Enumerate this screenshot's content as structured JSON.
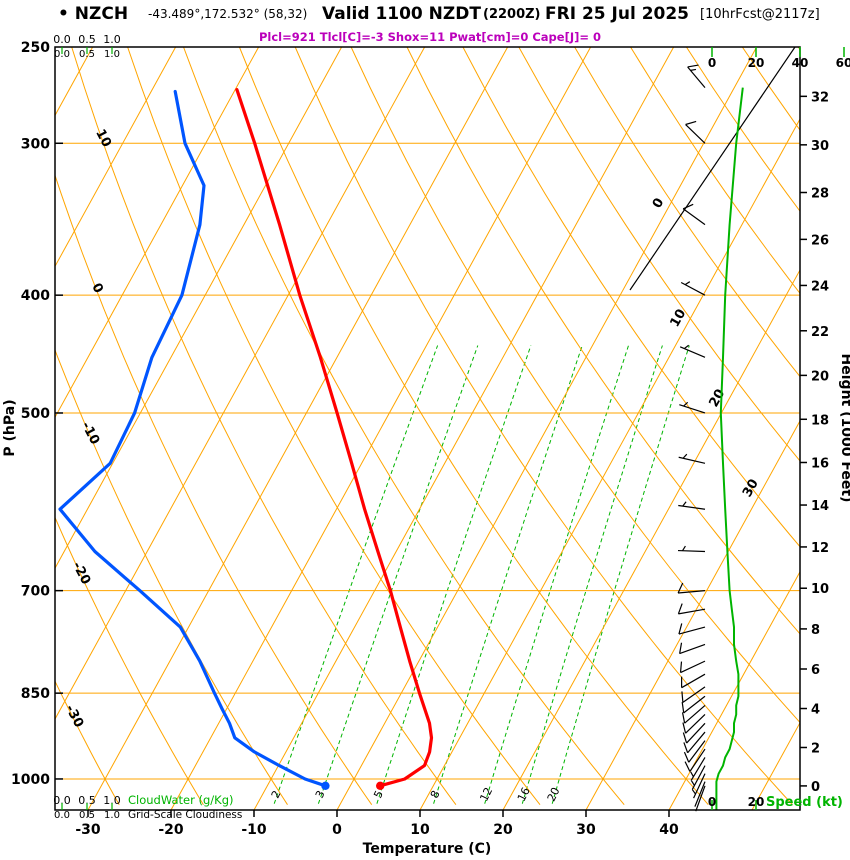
{
  "header": {
    "station_display": "• NZCH",
    "coords": "-43.489°,172.532° (58,32)",
    "valid_main": "Valid 1100 NZDT",
    "valid_z": "(2200Z)",
    "valid_date": "FRI 25 Jul 2025",
    "fcst_tag": "[10hrFcst@2117z]",
    "indices_line": "Plcl=921 Tlcl[C]=-3 Shox=11 Pwat[cm]=0 Cape[J]= 0"
  },
  "axes": {
    "pressure": {
      "title": "P (hPa)",
      "ticks": [
        250,
        300,
        400,
        500,
        700,
        850,
        1000
      ]
    },
    "temperature": {
      "title": "Temperature (C)",
      "ticks": [
        -30,
        -20,
        -10,
        0,
        10,
        20,
        30,
        40
      ]
    },
    "height": {
      "title": "Height (1000 Feet)",
      "ticks": [
        0,
        2,
        4,
        6,
        8,
        10,
        12,
        14,
        16,
        18,
        20,
        22,
        24,
        26,
        28,
        30,
        32
      ]
    },
    "speed": {
      "title": "Speed (kt)",
      "ticks_top": [
        0,
        20,
        40,
        60
      ],
      "ticks_bottom": [
        0,
        20
      ]
    },
    "cloud": {
      "scale": [
        "0.0",
        "0.5",
        "1.0"
      ],
      "water_label": "CloudWater (g/Kg)",
      "cloudiness_label": "Grid-Scale Cloudiness"
    }
  },
  "colors": {
    "orange": "#FFA500",
    "green": "#00b400",
    "red": "#ff0000",
    "blue": "#0055ff",
    "magenta": "#bb00bb",
    "black": "#000000"
  },
  "chart_data": {
    "type": "line",
    "subtype": "skewt-logp-sounding",
    "pressure_range_hpa": [
      250,
      1050
    ],
    "temperature_axis_range_c": [
      -30,
      40
    ],
    "isotherm_step_c": 10,
    "isotherm_labels_in_plot": [
      0,
      10,
      20,
      30
    ],
    "dry_adiabat_labels_left_edge": [
      10,
      0,
      -10,
      -20,
      -30
    ],
    "mixing_ratio_lines_gkg": [
      2,
      3,
      5,
      8,
      12,
      16,
      20
    ],
    "temperature_profile": {
      "pressure_hpa": [
        1013,
        1000,
        975,
        950,
        925,
        900,
        850,
        800,
        750,
        700,
        650,
        600,
        550,
        500,
        450,
        400,
        350,
        300,
        271
      ],
      "temp_c": [
        3.6,
        6.1,
        7.6,
        7.3,
        6.6,
        5.4,
        2.2,
        -1.1,
        -4.5,
        -8.1,
        -12.2,
        -16.6,
        -21.2,
        -26.3,
        -32.0,
        -38.6,
        -45.7,
        -54.1,
        -59.8
      ]
    },
    "dewpoint_profile": {
      "pressure_hpa": [
        1013,
        1000,
        975,
        950,
        925,
        900,
        875,
        850,
        800,
        750,
        700,
        650,
        600,
        550,
        500,
        450,
        400,
        350,
        325,
        300,
        272
      ],
      "dewpoint_c": [
        -3.0,
        -5.9,
        -9.9,
        -13.8,
        -17.1,
        -18.7,
        -20.6,
        -22.5,
        -26.4,
        -31.0,
        -38.3,
        -46.3,
        -53.3,
        -50.3,
        -50.7,
        -52.3,
        -52.8,
        -55.3,
        -57.4,
        -62.5,
        -67.1
      ]
    },
    "wind_profile": {
      "pressure_hpa": [
        1013,
        1005,
        990,
        975,
        960,
        945,
        930,
        915,
        900,
        885,
        870,
        855,
        840,
        820,
        800,
        775,
        750,
        725,
        700,
        650,
        600,
        550,
        500,
        450,
        400,
        350,
        300,
        270
      ],
      "direction_deg": [
        200,
        202,
        205,
        208,
        211,
        214,
        217,
        220,
        223,
        226,
        229,
        232,
        235,
        240,
        245,
        250,
        255,
        260,
        265,
        272,
        278,
        283,
        288,
        293,
        298,
        306,
        314,
        320
      ],
      "speed_kt": [
        2,
        2,
        3,
        5,
        6,
        8,
        9,
        10,
        10,
        11,
        11,
        12,
        12,
        12,
        11,
        10,
        10,
        9,
        8,
        7,
        6,
        5,
        4,
        5,
        6,
        8,
        11,
        14
      ]
    },
    "surface": {
      "pressure_hpa": 1013,
      "temp_c": 3.6,
      "dewpoint_c": -3.0
    }
  }
}
